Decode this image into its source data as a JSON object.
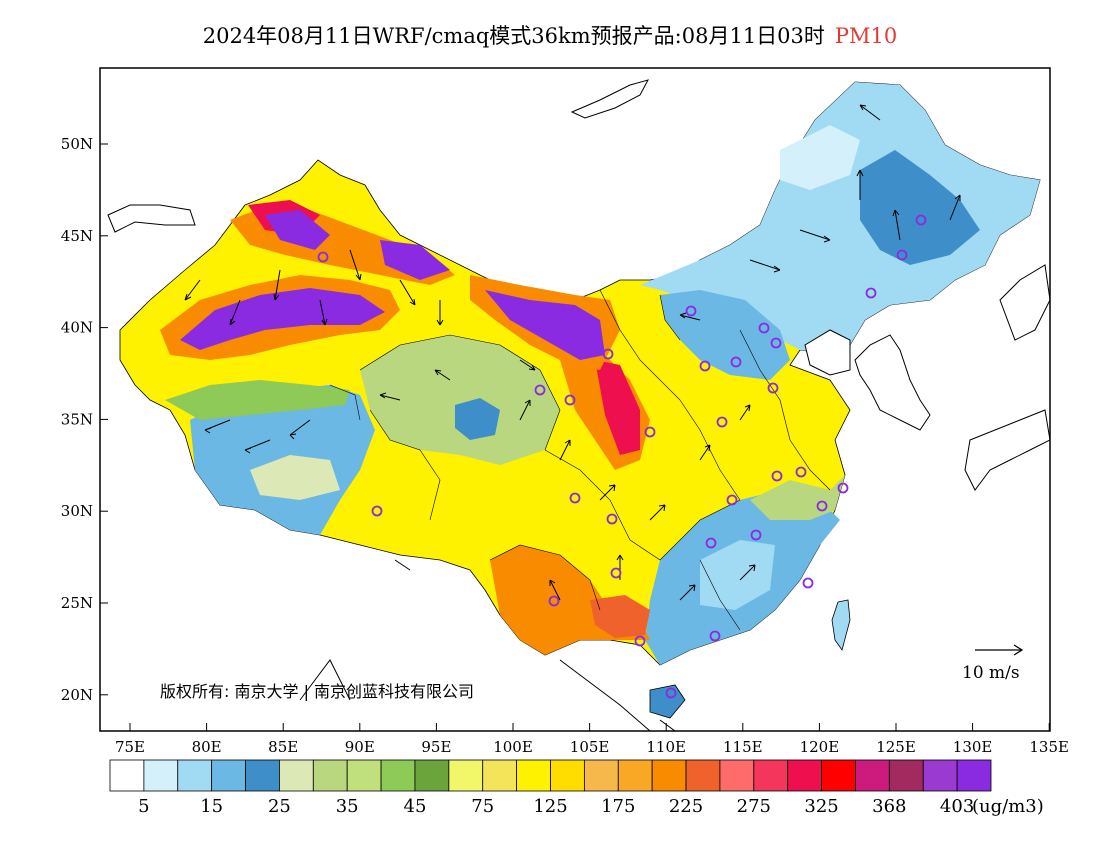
{
  "title": {
    "main": "2024年08月11日WRF/cmaq模式36km预报产品:08月11日03时",
    "variable": "PM10"
  },
  "axes": {
    "lat_ticks": [
      "50N",
      "45N",
      "40N",
      "35N",
      "30N",
      "25N",
      "20N"
    ],
    "lon_ticks": [
      "75E",
      "80E",
      "85E",
      "90E",
      "95E",
      "100E",
      "105E",
      "110E",
      "115E",
      "120E",
      "125E",
      "130E",
      "135E"
    ],
    "lon_range": [
      73,
      135
    ],
    "lat_range": [
      18,
      54
    ]
  },
  "copyright": "版权所有: 南京大学 | 南京创蓝科技有限公司",
  "wind_scale": {
    "label": "10 m/s"
  },
  "colorbar": {
    "colors": [
      "#ffffff",
      "#d4f0fb",
      "#a0daf3",
      "#6cb8e4",
      "#3e8fc9",
      "#dde8b7",
      "#b9d77e",
      "#c0e07e",
      "#8dca57",
      "#6aa43a",
      "#f2f76a",
      "#f3e45a",
      "#fff200",
      "#ffdd00",
      "#f7b84b",
      "#f9a825",
      "#f98b00",
      "#f0622c",
      "#ff6b6b",
      "#f5365c",
      "#ee0f4e",
      "#ff0000",
      "#cc1a7d",
      "#a32a5e",
      "#9b3ad1",
      "#8a2be2"
    ],
    "labels": [
      "5",
      "15",
      "25",
      "35",
      "45",
      "75",
      "125",
      "175",
      "225",
      "275",
      "325",
      "368",
      "403"
    ],
    "unit": "(ug/m3)"
  },
  "map_colors": {
    "ocean": "#ffffff",
    "clean": "#a0daf3",
    "light": "#d4f0fb",
    "blue": "#6cb8e4",
    "dark_blue": "#3e8fc9",
    "green": "#b9d77e",
    "dark_green": "#6aa43a",
    "yellow": "#fff200",
    "orange": "#f98b00",
    "red": "#ee0f4e",
    "purple": "#8a2be2"
  }
}
